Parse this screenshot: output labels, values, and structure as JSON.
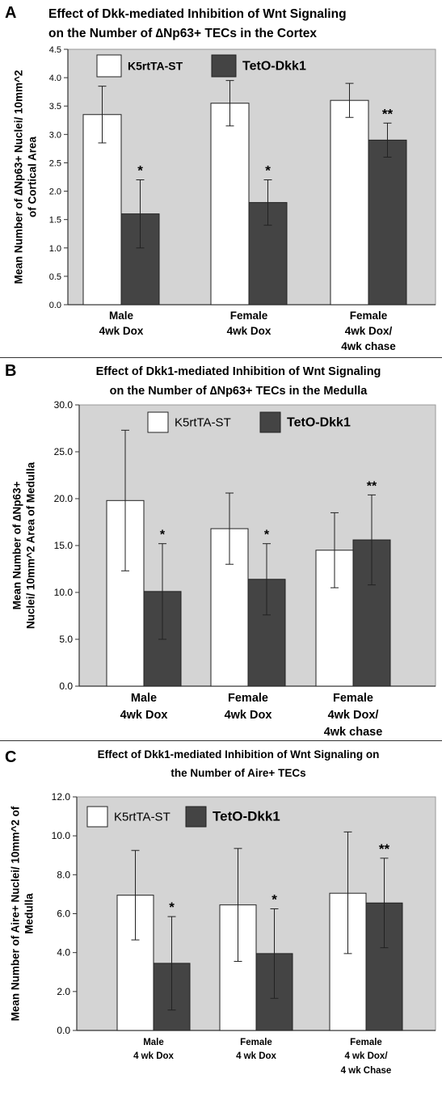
{
  "chart_data": [
    {
      "panel_letter": "A",
      "type": "bar",
      "title_lines": [
        "Effect of Dkk-mediated Inhibition of Wnt Signaling",
        "on the Number of ∆Np63+ TECs in the Cortex"
      ],
      "ylabel_lines": [
        "Mean Number of ∆Np63+ Nuclei/ 10mm^2",
        "of Cortical Area"
      ],
      "ylim": [
        0,
        4.5
      ],
      "yticks": [
        "0.0",
        "0.5",
        "1.0",
        "1.5",
        "2.0",
        "2.5",
        "3.0",
        "3.5",
        "4.0",
        "4.5"
      ],
      "categories": [
        [
          "Male",
          "4wk Dox"
        ],
        [
          "Female",
          "4wk Dox"
        ],
        [
          "Female",
          "4wk Dox/",
          "4wk chase"
        ]
      ],
      "series": [
        {
          "name": "K5rtTA-ST",
          "color": "#ffffff",
          "values": [
            3.35,
            3.55,
            3.6
          ],
          "err_low": [
            2.85,
            3.15,
            3.3
          ],
          "err_high": [
            3.85,
            3.95,
            3.9
          ]
        },
        {
          "name": "TetO-Dkk1",
          "color": "#444444",
          "values": [
            1.6,
            1.8,
            2.9
          ],
          "err_low": [
            1.0,
            1.4,
            2.6
          ],
          "err_high": [
            2.2,
            2.2,
            3.2
          ]
        }
      ],
      "annotations": [
        "*",
        "*",
        "**"
      ],
      "plot_bg": "#d4d4d4"
    },
    {
      "panel_letter": "B",
      "type": "bar",
      "title_lines": [
        "Effect of Dkk1-mediated Inhibition of Wnt Signaling",
        "on the Number of ∆Np63+ TECs in the Medulla"
      ],
      "ylabel_lines": [
        "Mean Number of ∆Np63+",
        "Nuclei/ 10mm^2 Area of Medulla"
      ],
      "ylim": [
        0,
        30
      ],
      "yticks": [
        "0.0",
        "5.0",
        "10.0",
        "15.0",
        "20.0",
        "25.0",
        "30.0"
      ],
      "categories": [
        [
          "Male",
          "4wk Dox"
        ],
        [
          "Female",
          "4wk Dox"
        ],
        [
          "Female",
          "4wk Dox/",
          "4wk chase"
        ]
      ],
      "series": [
        {
          "name": "K5rtTA-ST",
          "color": "#ffffff",
          "values": [
            19.8,
            16.8,
            14.5
          ],
          "err_low": [
            12.3,
            13.0,
            10.5
          ],
          "err_high": [
            27.3,
            20.6,
            18.5
          ]
        },
        {
          "name": "TetO-Dkk1",
          "color": "#444444",
          "values": [
            10.1,
            11.4,
            15.6
          ],
          "err_low": [
            5.0,
            7.6,
            10.8
          ],
          "err_high": [
            15.2,
            15.2,
            20.4
          ]
        }
      ],
      "annotations": [
        "*",
        "*",
        "**"
      ],
      "plot_bg": "#d4d4d4"
    },
    {
      "panel_letter": "C",
      "type": "bar",
      "title_lines": [
        "Effect of Dkk1-mediated  Inhibition of Wnt Signaling on",
        "the Number of Aire+ TECs"
      ],
      "ylabel_lines": [
        "Mean Number of Aire+ Nuclei/ 10mm^2 of",
        "Medulla"
      ],
      "ylim": [
        0,
        12
      ],
      "yticks": [
        "0.0",
        "2.0",
        "4.0",
        "6.0",
        "8.0",
        "10.0",
        "12.0"
      ],
      "categories": [
        [
          "Male",
          "4 wk Dox"
        ],
        [
          "Female",
          "4 wk Dox"
        ],
        [
          "Female",
          "4 wk Dox/",
          "4 wk Chase"
        ]
      ],
      "series": [
        {
          "name": "K5rtTA-ST",
          "color": "#ffffff",
          "values": [
            6.95,
            6.45,
            7.05
          ],
          "err_low": [
            4.65,
            3.55,
            3.95
          ],
          "err_high": [
            9.25,
            9.35,
            10.2
          ]
        },
        {
          "name": "TetO-Dkk1",
          "color": "#444444",
          "values": [
            3.45,
            3.95,
            6.55
          ],
          "err_low": [
            1.05,
            1.65,
            4.25
          ],
          "err_high": [
            5.85,
            6.25,
            8.85
          ]
        }
      ],
      "annotations": [
        "*",
        "*",
        "**"
      ],
      "plot_bg": "#d4d4d4"
    }
  ]
}
